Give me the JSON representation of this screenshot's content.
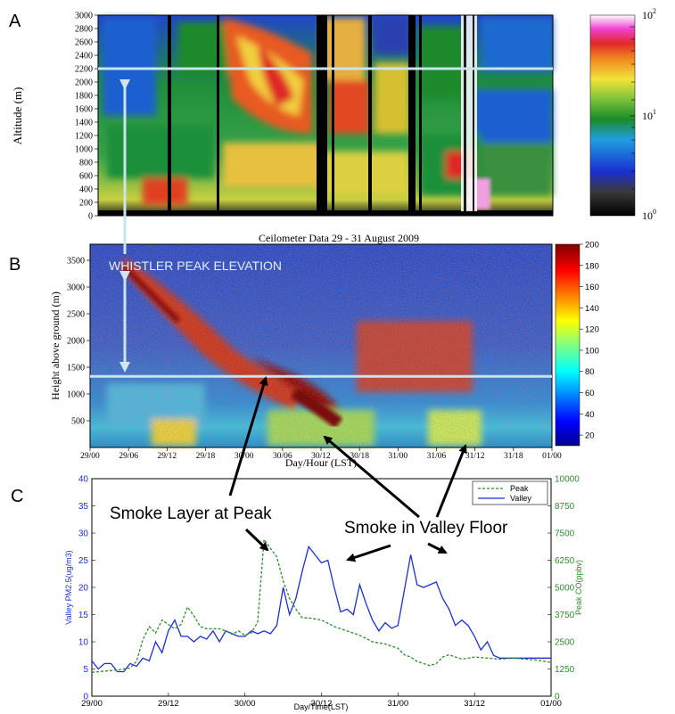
{
  "panel_labels": {
    "a": "A",
    "b": "B",
    "c": "C"
  },
  "panel_a": {
    "ylabel": "Altitude (m)",
    "yticks": [
      0,
      200,
      400,
      600,
      800,
      1000,
      1200,
      1400,
      1600,
      1800,
      2000,
      2200,
      2400,
      2600,
      2800,
      3000
    ],
    "ylim": [
      0,
      3000
    ],
    "caption": "Ceilometer Data 29 - 31 August 2009",
    "colorbar_labels": [
      {
        "base": "10",
        "exp": "2"
      },
      {
        "base": "10",
        "exp": "1"
      },
      {
        "base": "10",
        "exp": "0"
      }
    ],
    "reference_line_altitude": 2200
  },
  "panel_b": {
    "ylabel": "Height above ground (m)",
    "xlabel": "Day/Hour (LST)",
    "yticks": [
      500,
      1000,
      1500,
      2000,
      2500,
      3000,
      3500
    ],
    "ylim": [
      0,
      3800
    ],
    "xticks": [
      "29/00",
      "29/06",
      "29/12",
      "29/18",
      "30/00",
      "30/06",
      "30/12",
      "30/18",
      "31/00",
      "31/06",
      "31/12",
      "31/18",
      "01/00"
    ],
    "colorbar_ticks": [
      20,
      40,
      60,
      80,
      100,
      120,
      140,
      160,
      180,
      200
    ],
    "annotation": "WHISTLER PEAK ELEVATION",
    "reference_line_height": 1330
  },
  "annotations": {
    "smoke_peak": "Smoke Layer at Peak",
    "smoke_valley": "Smoke in Valley Floor"
  },
  "chart_data": {
    "type": "line",
    "xlabel": "Day/Time(LST)",
    "ylabel_left": "Valley PM2.5(ug/m3)",
    "ylabel_right": "Peak CO(ppbv)",
    "xticks": [
      "29/00",
      "29/12",
      "30/00",
      "30/12",
      "31/00",
      "31/12",
      "01/00"
    ],
    "xlim": [
      0,
      72
    ],
    "ylim_left": [
      0,
      40
    ],
    "ylim_right": [
      0,
      10000
    ],
    "yticks_left": [
      0,
      5,
      10,
      15,
      20,
      25,
      30,
      35,
      40
    ],
    "yticks_right": [
      0,
      1250,
      2500,
      3750,
      5000,
      6250,
      7500,
      8750,
      10000
    ],
    "legend": {
      "position": "top-right",
      "entries": [
        "Peak",
        "Valley"
      ]
    },
    "series": [
      {
        "name": "Valley",
        "axis": "left",
        "color": "#1c2fd1",
        "x": [
          0,
          1,
          2,
          3,
          4,
          5,
          6,
          7,
          8,
          9,
          10,
          11,
          12,
          13,
          14,
          15,
          16,
          17,
          18,
          19,
          20,
          21,
          22,
          23,
          24,
          25,
          26,
          27,
          28,
          29,
          30,
          31,
          32,
          33,
          34,
          35,
          36,
          37,
          38,
          39,
          40,
          41,
          42,
          43,
          44,
          45,
          46,
          47,
          48,
          49,
          50,
          51,
          52,
          53,
          54,
          55,
          56,
          57,
          58,
          59,
          60,
          61,
          62,
          63,
          64,
          65,
          66,
          67,
          68,
          69,
          70,
          71,
          72
        ],
        "values": [
          6.5,
          5.0,
          6.0,
          6.0,
          4.5,
          4.5,
          6.0,
          5.5,
          7.0,
          6.5,
          10.0,
          8.0,
          12.0,
          14.0,
          11.0,
          11.0,
          10.0,
          11.0,
          10.5,
          12.0,
          10.0,
          12.0,
          11.5,
          11.0,
          11.0,
          12.0,
          11.5,
          12.0,
          11.5,
          13.0,
          20.0,
          15.0,
          18.0,
          23.0,
          27.5,
          26.0,
          24.5,
          25.0,
          20.0,
          15.5,
          16.0,
          15.0,
          20.5,
          17.0,
          14.0,
          12.0,
          13.5,
          12.5,
          13.0,
          19.5,
          26.0,
          20.5,
          20.0,
          20.5,
          21.0,
          18.0,
          16.0,
          13.0,
          14.0,
          13.0,
          11.0,
          8.5,
          10.0,
          7.5,
          7.0,
          7.0,
          7.0,
          7.0,
          7.0,
          7.0,
          7.0,
          7.0,
          7.0
        ]
      },
      {
        "name": "Peak",
        "axis": "right",
        "color": "#2e8b2e",
        "x": [
          0,
          2,
          4,
          6,
          7,
          8,
          9,
          10,
          11,
          12,
          13,
          14,
          15,
          16,
          17,
          18,
          19,
          20,
          21,
          22,
          23,
          24,
          25,
          26,
          27,
          28,
          29,
          30,
          31,
          32,
          33,
          34,
          36,
          38,
          40,
          42,
          44,
          46,
          48,
          49,
          50,
          51,
          52,
          53,
          54,
          55,
          56,
          58,
          60,
          62,
          64,
          66,
          68,
          70,
          72
        ],
        "values": [
          1100,
          1150,
          1200,
          1300,
          1600,
          2600,
          3200,
          2900,
          3500,
          3300,
          3100,
          3300,
          4100,
          3700,
          3200,
          3100,
          3100,
          3100,
          3000,
          2850,
          3000,
          2800,
          2900,
          3400,
          7200,
          6800,
          6400,
          5300,
          4500,
          4000,
          3600,
          3600,
          3500,
          3200,
          3000,
          2800,
          2500,
          2400,
          2200,
          1900,
          1800,
          1600,
          1500,
          1400,
          1500,
          1800,
          1900,
          1700,
          1800,
          1750,
          1700,
          1750,
          1700,
          1650,
          1550
        ]
      }
    ]
  }
}
